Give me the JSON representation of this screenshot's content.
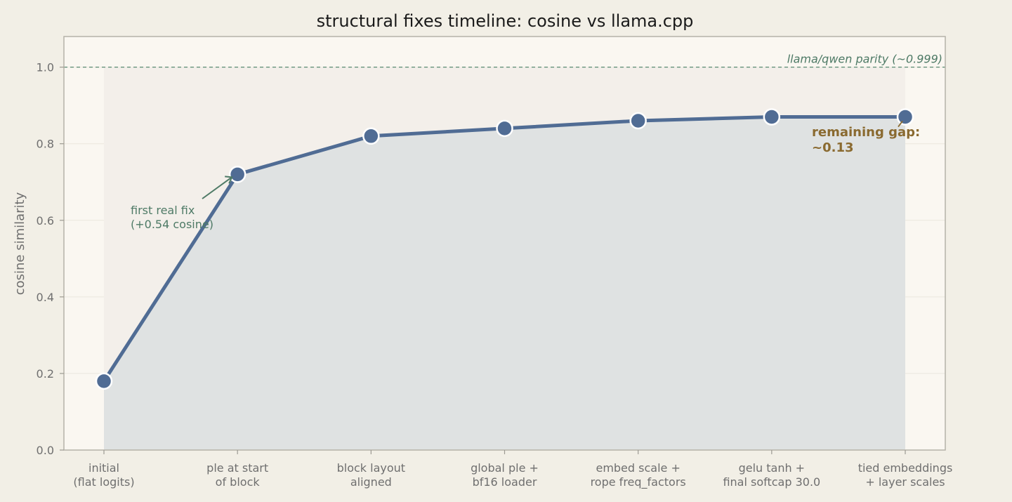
{
  "chart_data": {
    "type": "line",
    "title": "structural fixes timeline: cosine vs llama.cpp",
    "xlabel": "",
    "ylabel": "cosine similarity",
    "categories": [
      [
        "initial",
        "(flat logits)"
      ],
      [
        "ple at start",
        "of block"
      ],
      [
        "block layout",
        "aligned"
      ],
      [
        "global ple +",
        "bf16 loader"
      ],
      [
        "embed scale +",
        "rope freq_factors"
      ],
      [
        "gelu tanh +",
        "final softcap 30.0"
      ],
      [
        "tied embeddings",
        "+ layer scales"
      ]
    ],
    "values": [
      0.18,
      0.72,
      0.82,
      0.84,
      0.86,
      0.87,
      0.87
    ],
    "ylim": [
      0,
      1.08
    ],
    "yticks": [
      0.0,
      0.2,
      0.4,
      0.6,
      0.8,
      1.0
    ],
    "ytick_labels": [
      "0.0",
      "0.2",
      "0.4",
      "0.6",
      "0.8",
      "1.0"
    ],
    "grid": true,
    "reference_line": {
      "value": 1.0,
      "label": "llama/qwen parity (~0.999)",
      "color": "#5a8a72"
    },
    "annotations": [
      {
        "lines": [
          "first real fix",
          "(+0.54 cosine)"
        ],
        "target_index": 1,
        "color": "#4e7a66"
      },
      {
        "lines": [
          "remaining gap:",
          "~0.13"
        ],
        "target_index": 6,
        "color": "#8a6a30"
      }
    ],
    "colors": {
      "line": "#506c94",
      "fill": "#dfe2e2",
      "background": "#f2efe6",
      "plot_background": "#faf7f1"
    }
  }
}
